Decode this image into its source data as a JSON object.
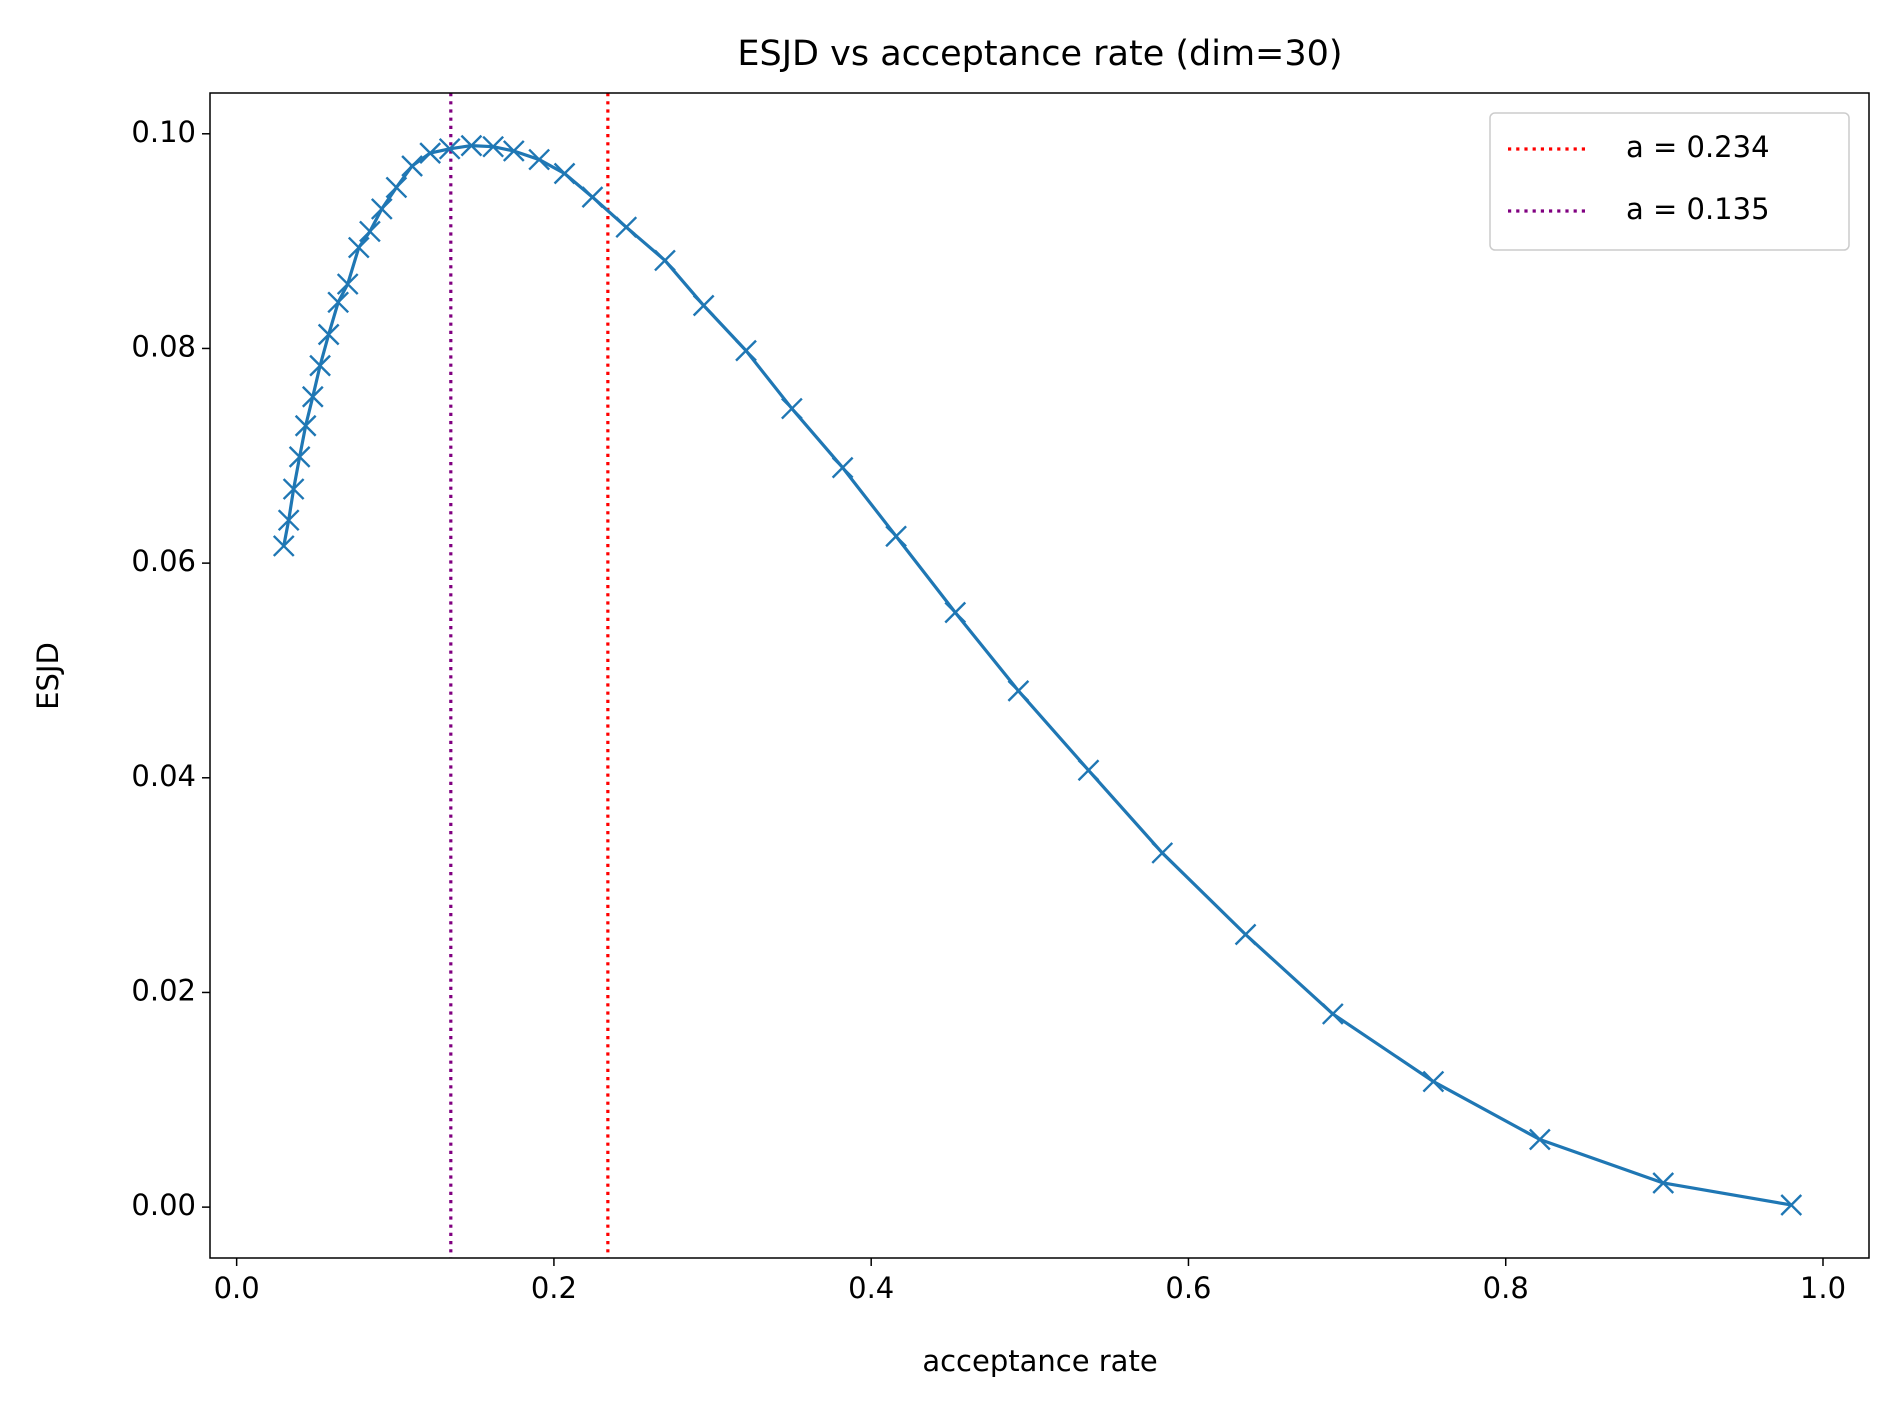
{
  "chart_data": {
    "type": "line",
    "title": "ESJD vs acceptance rate (dim=30)",
    "xlabel": "acceptance rate",
    "ylabel": "ESJD",
    "x": [
      0.0297,
      0.0328,
      0.0359,
      0.0397,
      0.0435,
      0.048,
      0.0526,
      0.058,
      0.064,
      0.07,
      0.077,
      0.084,
      0.0915,
      0.1007,
      0.1106,
      0.122,
      0.1343,
      0.148,
      0.1617,
      0.1747,
      0.1907,
      0.2067,
      0.2243,
      0.2456,
      0.27,
      0.2944,
      0.3211,
      0.35,
      0.382,
      0.4157,
      0.453,
      0.4928,
      0.537,
      0.5835,
      0.636,
      0.691,
      0.7544,
      0.8215,
      0.8993,
      0.98
    ],
    "series": [
      {
        "color": "#1f77b4",
        "marker": "x",
        "values": [
          0.0616,
          0.064,
          0.0669,
          0.0699,
          0.0728,
          0.0755,
          0.0784,
          0.0813,
          0.0843,
          0.086,
          0.0894,
          0.0909,
          0.093,
          0.095,
          0.097,
          0.0982,
          0.0986,
          0.0989,
          0.0988,
          0.0984,
          0.0976,
          0.0963,
          0.0941,
          0.0913,
          0.0882,
          0.084,
          0.0798,
          0.0744,
          0.0689,
          0.0625,
          0.0554,
          0.0481,
          0.0407,
          0.033,
          0.0254,
          0.018,
          0.0117,
          0.0063,
          0.00225,
          0.0002
        ]
      }
    ],
    "vlines": [
      {
        "name": "a = 0.234",
        "x": 0.234,
        "color": "red"
      },
      {
        "name": "a = 0.135",
        "x": 0.135,
        "color": "purple"
      }
    ],
    "legend": "upper right",
    "xlim": [
      -0.0168,
      1.029
    ],
    "ylim": [
      -0.00474,
      0.1038
    ],
    "xticks": [
      {
        "value": 0,
        "label": "0.0"
      },
      {
        "value": 0.2,
        "label": "0.2"
      },
      {
        "value": 0.4,
        "label": "0.4"
      },
      {
        "value": 0.6,
        "label": "0.6"
      },
      {
        "value": 0.8,
        "label": "0.8"
      },
      {
        "value": 1,
        "label": "1.0"
      }
    ],
    "yticks": [
      {
        "value": 0,
        "label": "0.00"
      },
      {
        "value": 0.02,
        "label": "0.02"
      },
      {
        "value": 0.04,
        "label": "0.04"
      },
      {
        "value": 0.06,
        "label": "0.06"
      },
      {
        "value": 0.08,
        "label": "0.08"
      },
      {
        "value": 0.1,
        "label": "0.10"
      }
    ]
  }
}
